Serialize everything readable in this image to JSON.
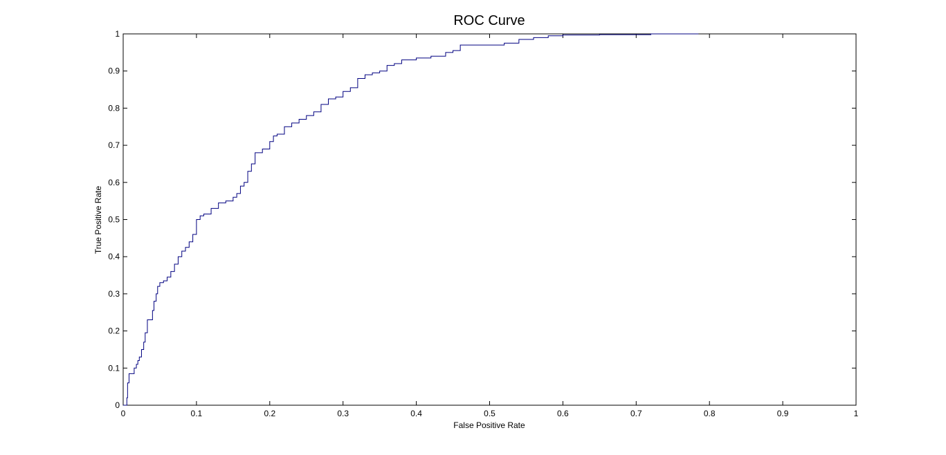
{
  "chart_data": {
    "type": "line",
    "title": "ROC Curve",
    "xlabel": "False Positive Rate",
    "ylabel": "True Positive Rate",
    "xlim": [
      0,
      1
    ],
    "ylim": [
      0,
      1
    ],
    "xticks": [
      "0",
      "0.1",
      "0.2",
      "0.3",
      "0.4",
      "0.5",
      "0.6",
      "0.7",
      "0.8",
      "0.9",
      "1"
    ],
    "yticks": [
      "0",
      "0.1",
      "0.2",
      "0.3",
      "0.4",
      "0.5",
      "0.6",
      "0.7",
      "0.8",
      "0.9",
      "1"
    ],
    "xtick_values": [
      0,
      0.1,
      0.2,
      0.3,
      0.4,
      0.5,
      0.6,
      0.7,
      0.8,
      0.9,
      1
    ],
    "ytick_values": [
      0,
      0.1,
      0.2,
      0.3,
      0.4,
      0.5,
      0.6,
      0.7,
      0.8,
      0.9,
      1
    ],
    "grid": false,
    "line_color": "#000080",
    "series": [
      {
        "x": [
          0.0,
          0.004,
          0.005,
          0.006,
          0.008,
          0.01,
          0.015,
          0.018,
          0.02,
          0.022,
          0.025,
          0.028,
          0.03,
          0.033,
          0.035,
          0.04,
          0.042,
          0.045,
          0.047,
          0.05,
          0.052,
          0.055,
          0.06,
          0.065,
          0.07,
          0.075,
          0.08,
          0.085,
          0.09,
          0.095,
          0.1,
          0.105,
          0.11,
          0.12,
          0.13,
          0.14,
          0.15,
          0.155,
          0.16,
          0.165,
          0.17,
          0.175,
          0.18,
          0.19,
          0.2,
          0.205,
          0.21,
          0.22,
          0.23,
          0.24,
          0.25,
          0.26,
          0.27,
          0.28,
          0.29,
          0.3,
          0.31,
          0.32,
          0.33,
          0.34,
          0.35,
          0.36,
          0.37,
          0.38,
          0.4,
          0.42,
          0.44,
          0.45,
          0.46,
          0.47,
          0.48,
          0.5,
          0.52,
          0.54,
          0.56,
          0.58,
          0.6,
          0.65,
          0.7,
          0.72,
          0.75,
          0.785
        ],
        "y": [
          0.0,
          0.0,
          0.02,
          0.06,
          0.085,
          0.085,
          0.1,
          0.11,
          0.12,
          0.13,
          0.15,
          0.17,
          0.195,
          0.23,
          0.23,
          0.255,
          0.28,
          0.3,
          0.32,
          0.33,
          0.33,
          0.335,
          0.345,
          0.36,
          0.38,
          0.4,
          0.415,
          0.425,
          0.44,
          0.46,
          0.5,
          0.51,
          0.515,
          0.53,
          0.545,
          0.55,
          0.56,
          0.57,
          0.59,
          0.6,
          0.63,
          0.65,
          0.68,
          0.69,
          0.71,
          0.725,
          0.73,
          0.75,
          0.76,
          0.77,
          0.78,
          0.79,
          0.81,
          0.825,
          0.83,
          0.845,
          0.855,
          0.88,
          0.89,
          0.895,
          0.9,
          0.915,
          0.92,
          0.93,
          0.935,
          0.94,
          0.95,
          0.955,
          0.97,
          0.97,
          0.97,
          0.97,
          0.975,
          0.985,
          0.99,
          0.995,
          0.997,
          0.998,
          0.998,
          1.0,
          1.0,
          1.0
        ]
      }
    ]
  }
}
